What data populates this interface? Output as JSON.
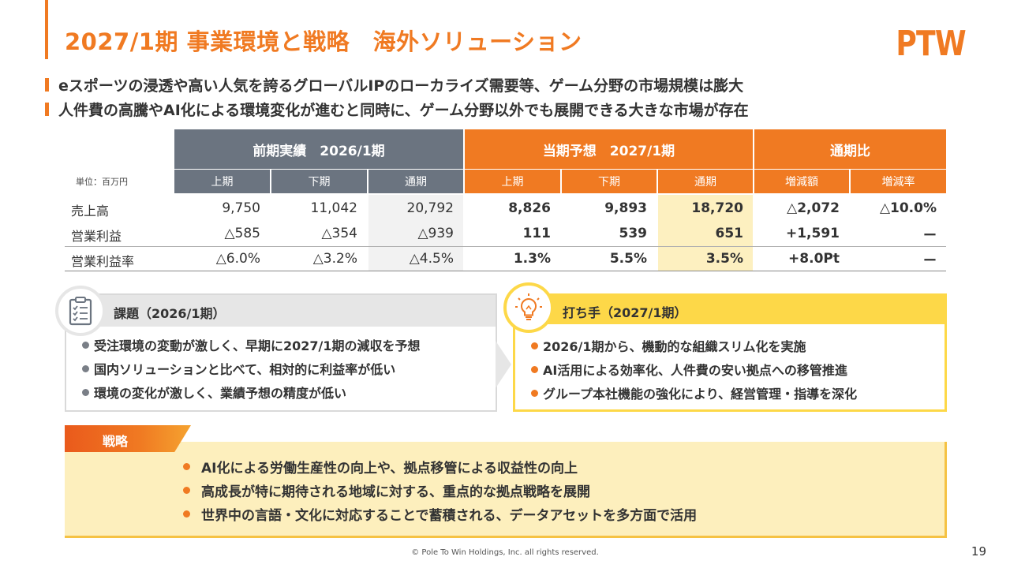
{
  "title": "2027/1期 事業環境と戦略　海外ソリューション",
  "logo": "PTW",
  "top_bullets": [
    "eスポーツの浸透や高い人気を誇るグローバルIPのローカライズ需要等、ゲーム分野の市場規模は膨大",
    "人件費の高騰やAI化による環境変化が進むと同時に、ゲーム分野以外でも展開できる大きな市場が存在"
  ],
  "table": {
    "unit": "単位：百万円",
    "group_headers": [
      "前期実績　2026/1期",
      "当期予想　2027/1期",
      "通期比"
    ],
    "sub_headers": [
      "上期",
      "下期",
      "通期",
      "上期",
      "下期",
      "通期",
      "増減額",
      "増減率"
    ],
    "rows": [
      {
        "label": "売上高",
        "values": [
          "9,750",
          "11,042",
          "20,792",
          "8,826",
          "9,893",
          "18,720",
          "△2,072",
          "△10.0%"
        ]
      },
      {
        "label": "営業利益",
        "values": [
          "△585",
          "△354",
          "△939",
          "111",
          "539",
          "651",
          "+1,591",
          "ー"
        ]
      },
      {
        "label": "営業利益率",
        "values": [
          "△6.0%",
          "△3.2%",
          "△4.5%",
          "1.3%",
          "5.5%",
          "3.5%",
          "+8.0Pt",
          "ー"
        ]
      }
    ]
  },
  "issues": {
    "heading": "課題（2026/1期）",
    "items": [
      "受注環境の変動が激しく、早期に2027/1期の減収を予想",
      "国内ソリューションと比べて、相対的に利益率が低い",
      "環境の変化が激しく、業績予想の精度が低い"
    ]
  },
  "measures": {
    "heading": "打ち手（2027/1期）",
    "items": [
      "2026/1期から、機動的な組織スリム化を実施",
      "AI活用による効率化、人件費の安い拠点への移管推進",
      "グループ本社機能の強化により、経営管理・指導を深化"
    ]
  },
  "strategy": {
    "heading": "戦略",
    "items": [
      "AI化による労働生産性の向上や、拠点移管による収益性の向上",
      "高成長が特に期待される地域に対する、重点的な拠点戦略を展開",
      "世界中の言語・文化に対応することで蓄積される、データアセットを多方面で活用"
    ]
  },
  "footer": "© Pole To Win Holdings, Inc. all rights reserved.",
  "page_number": "19",
  "colors": {
    "accent": "#f07a22",
    "gray_header": "#6b7480",
    "yellow": "#fdd848",
    "highlight": "#fdf0c0"
  }
}
